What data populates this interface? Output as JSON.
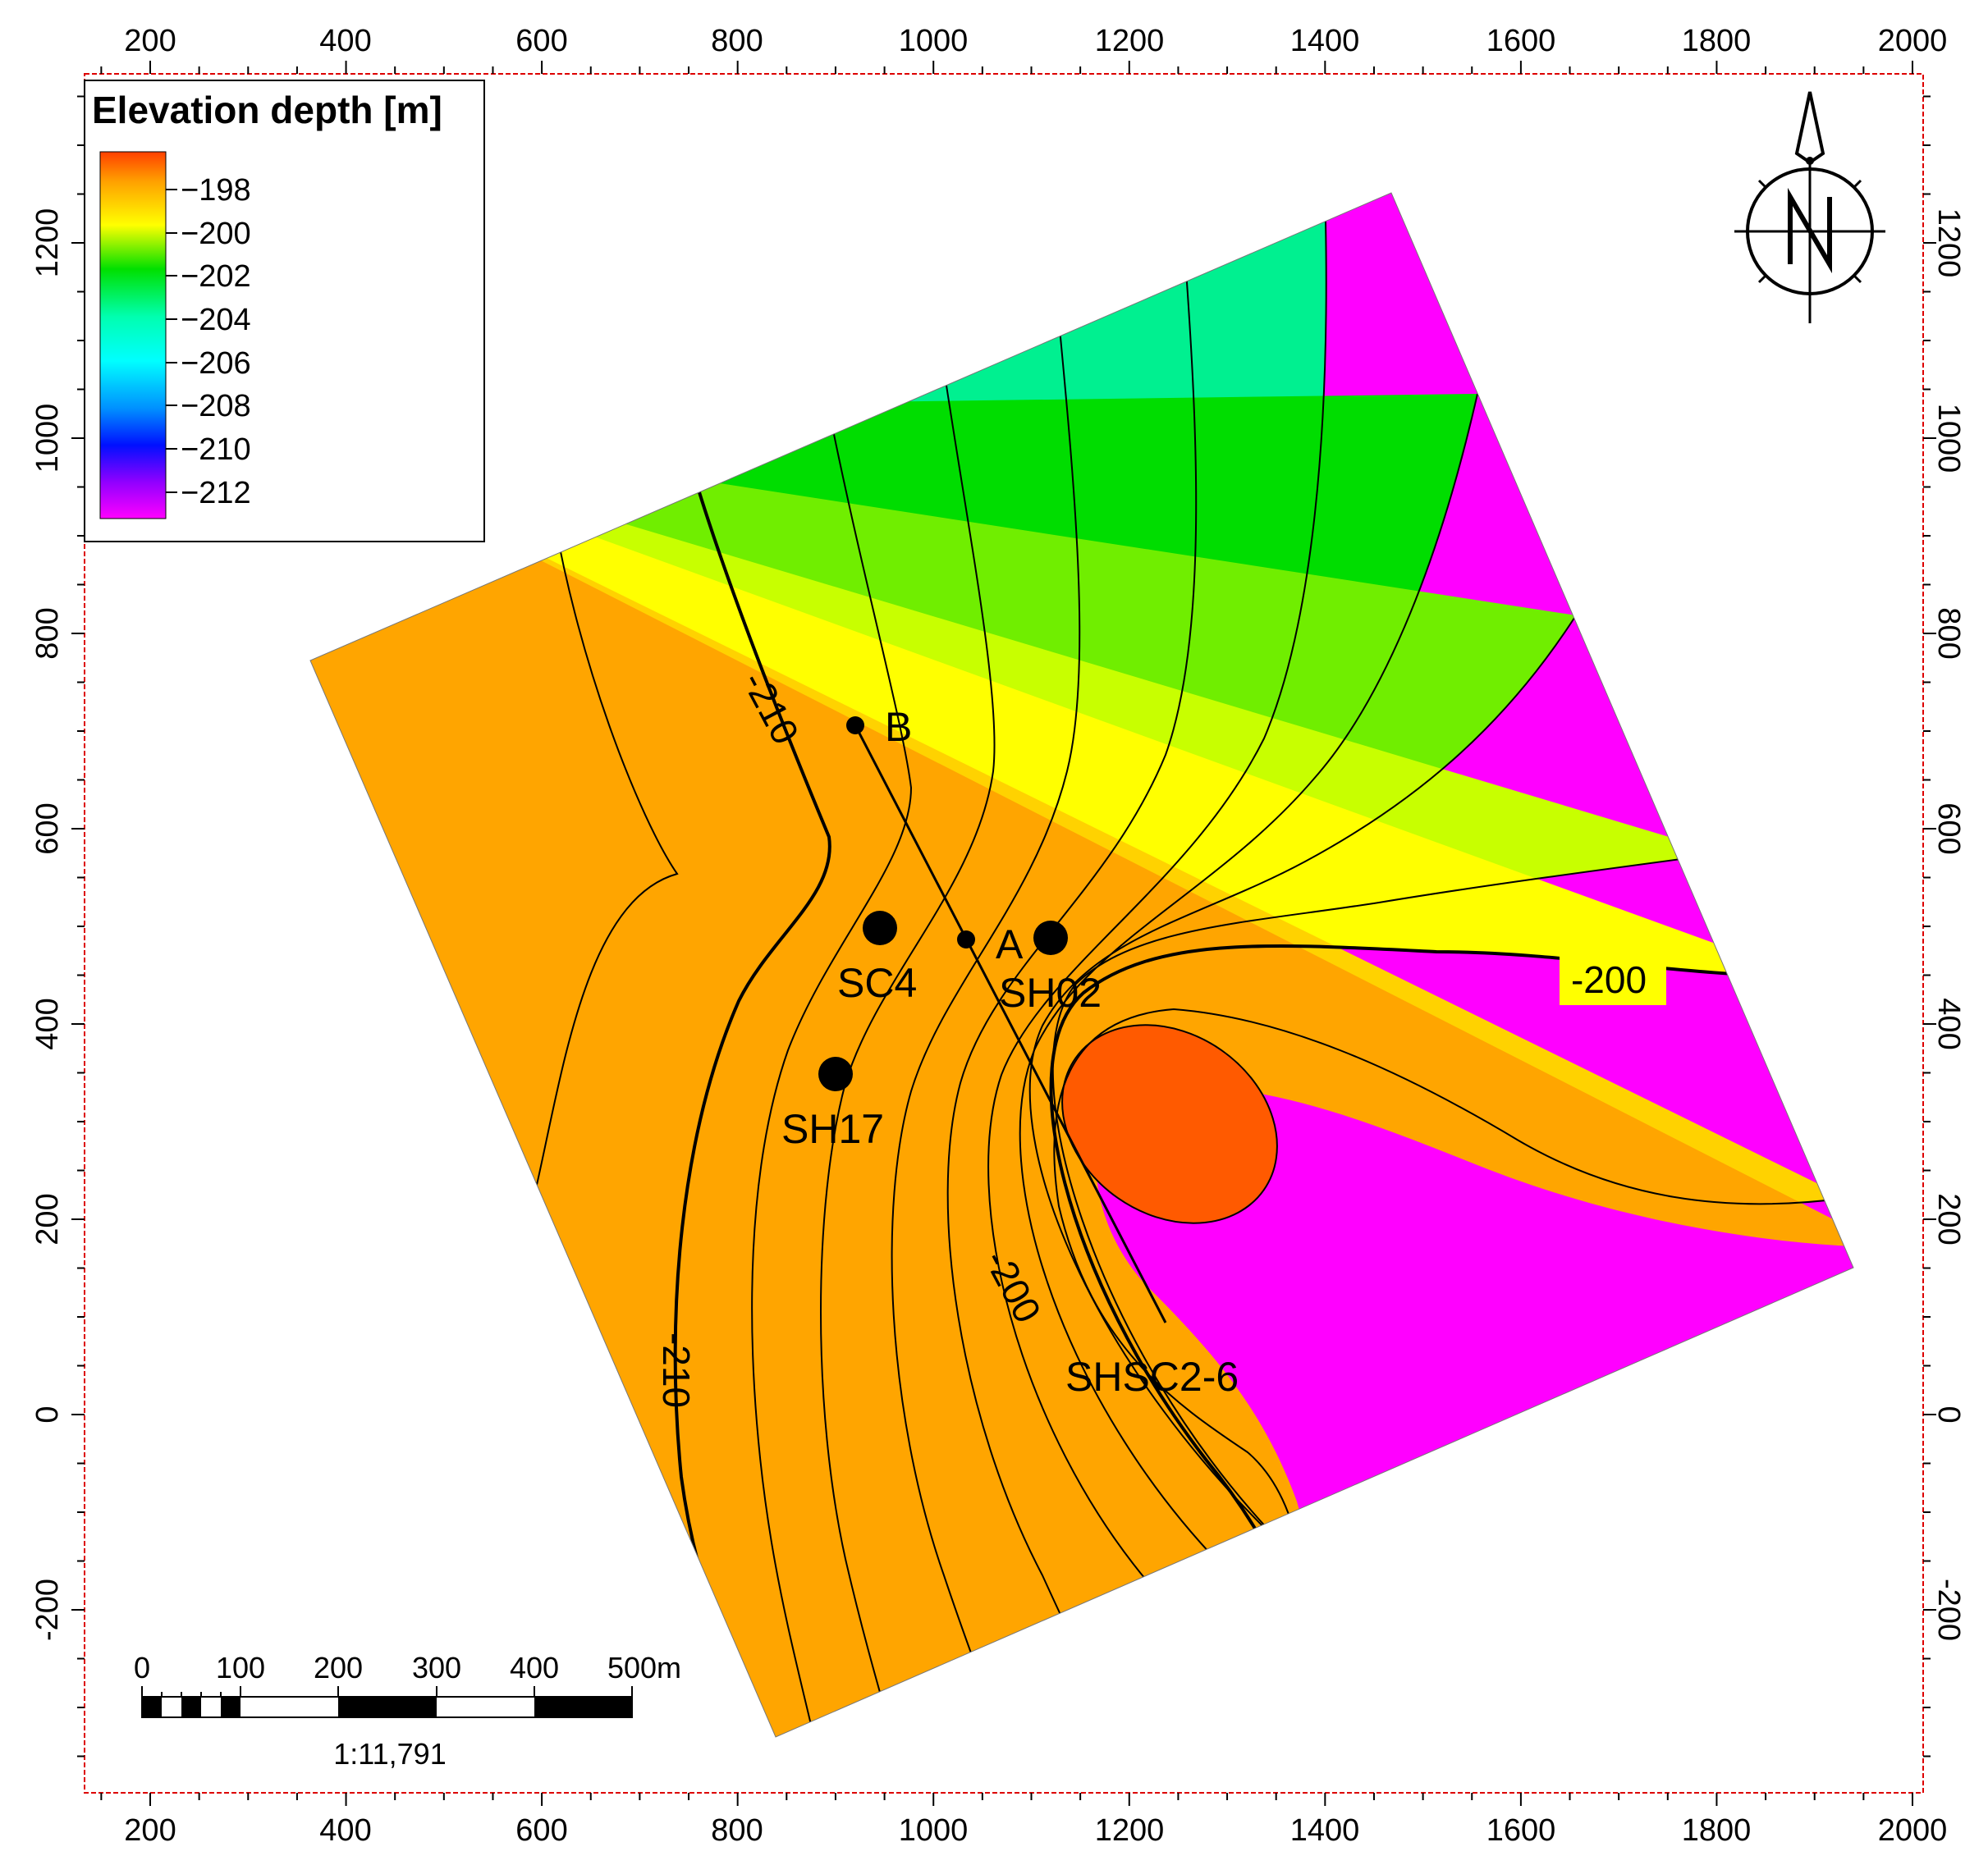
{
  "map": {
    "x_ticks": [
      "200",
      "400",
      "600",
      "800",
      "1000",
      "1200",
      "1400",
      "1600",
      "1800",
      "2000"
    ],
    "y_ticks": [
      "-200",
      "0",
      "200",
      "400",
      "600",
      "800",
      "1000",
      "1200"
    ],
    "colors": {
      "magenta": "#ff00ff",
      "purple": "#9000ff",
      "blue": "#0044ff",
      "mid_blue": "#008cff",
      "light_blue": "#00c8ff",
      "cyan": "#00ffff",
      "aqua": "#00ffc0",
      "teal_green": "#00f090",
      "green": "#00dd00",
      "light_green": "#70ee00",
      "yellow_green": "#c8ff00",
      "yellow": "#ffff00",
      "gold": "#ffd200",
      "orange": "#ffa500",
      "red_orange": "#ff5a00",
      "frame": "#dd0000"
    }
  },
  "legend": {
    "title": "Elevation depth [m]",
    "ticks": [
      "−198",
      "−200",
      "−202",
      "−204",
      "−206",
      "−208",
      "−210",
      "−212"
    ]
  },
  "contour_labels": {
    "upper_210": "-210",
    "lower_210": "-210",
    "right_200": "-200",
    "lower_200": "-200"
  },
  "wells": {
    "sc4": "SC4",
    "sh02": "SH02",
    "sh17": "SH17",
    "shsc2_6": "SHSC2-6"
  },
  "section": {
    "start_label": "B",
    "end_label": "A"
  },
  "scale_bar": {
    "labels": [
      "0",
      "100",
      "200",
      "300",
      "400",
      "500m"
    ],
    "ratio": "1:11,791"
  },
  "north_arrow": {
    "letter": "N"
  }
}
